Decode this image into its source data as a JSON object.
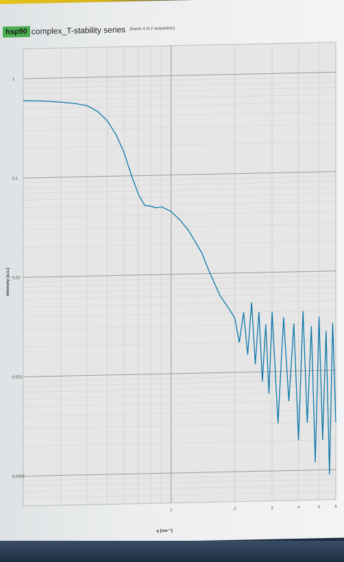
{
  "app_badge": "hsp90",
  "chart_data": {
    "type": "line",
    "title": "complex_T-stability series",
    "subtitle": "(frame 4 of 2 acquisition)",
    "xlabel": "q [nm⁻¹]",
    "ylabel": "Intensity [a.u.]",
    "xscale": "log",
    "yscale": "log",
    "xlim": [
      0.2,
      6
    ],
    "ylim": [
      5e-05,
      2
    ],
    "x_ticks": [
      1,
      2,
      3,
      4,
      5,
      6
    ],
    "y_ticks": [
      1,
      0.1,
      0.01,
      0.001,
      0.0001
    ],
    "y_tick_labels": [
      "1",
      "0.1",
      "0.01",
      "0.001",
      "0.0001"
    ],
    "grid": true,
    "series": [
      {
        "color": "#0a77a8",
        "x": [
          0.2,
          0.25,
          0.3,
          0.35,
          0.4,
          0.45,
          0.5,
          0.55,
          0.6,
          0.65,
          0.7,
          0.75,
          0.8,
          0.85,
          0.9,
          1.0,
          1.1,
          1.2,
          1.3,
          1.4,
          1.5,
          1.6,
          1.7,
          1.8,
          1.9,
          2.0,
          2.1,
          2.2,
          2.3,
          2.4,
          2.5,
          2.6,
          2.7,
          2.8,
          2.9,
          3.0,
          3.2,
          3.4,
          3.6,
          3.8,
          4.0,
          4.2,
          4.4,
          4.6,
          4.8,
          5.0,
          5.2,
          5.4,
          5.6,
          5.8,
          6.0
        ],
        "y": [
          0.6,
          0.59,
          0.57,
          0.55,
          0.52,
          0.45,
          0.36,
          0.26,
          0.17,
          0.1,
          0.065,
          0.05,
          0.049,
          0.047,
          0.048,
          0.043,
          0.035,
          0.028,
          0.021,
          0.016,
          0.011,
          0.008,
          0.006,
          0.005,
          0.0042,
          0.0035,
          0.002,
          0.004,
          0.0015,
          0.005,
          0.0012,
          0.004,
          0.0008,
          0.003,
          0.0006,
          0.004,
          0.0003,
          0.0035,
          0.0005,
          0.003,
          0.0002,
          0.004,
          0.0003,
          0.0028,
          0.00012,
          0.0035,
          0.0002,
          0.0025,
          9e-05,
          0.003,
          0.0003
        ]
      }
    ]
  }
}
